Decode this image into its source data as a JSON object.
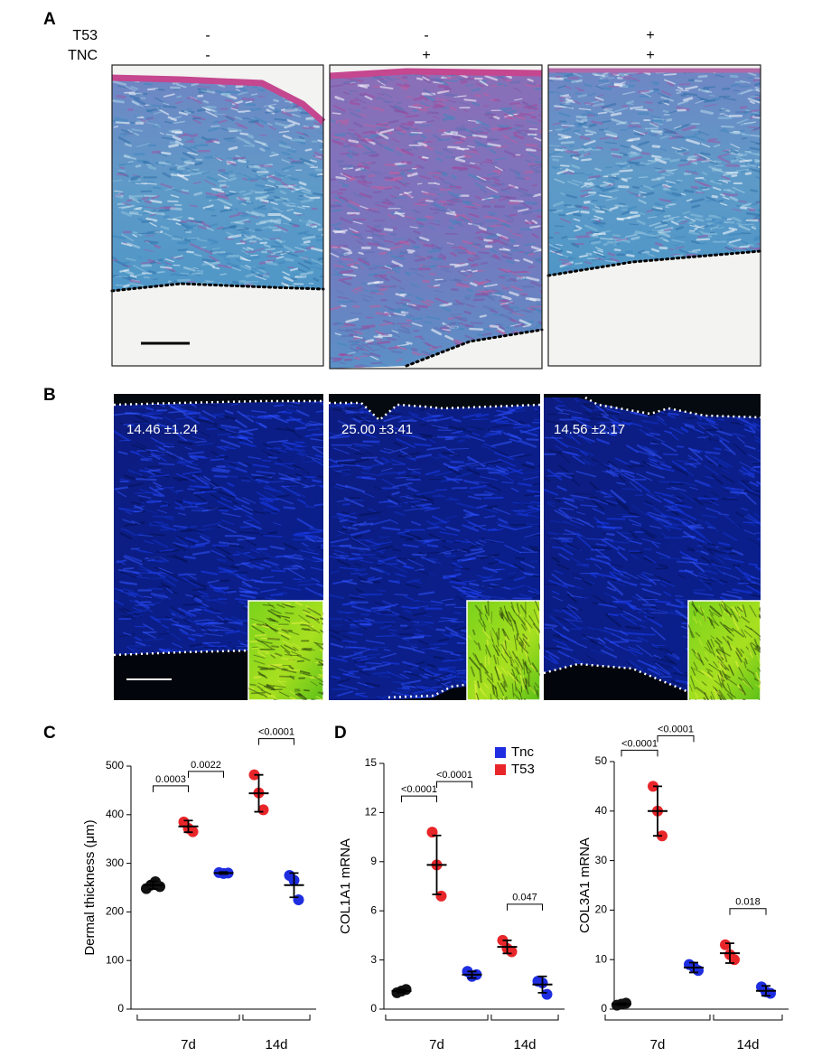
{
  "panel_a": {
    "label": "A",
    "row_labels": [
      "T53",
      "TNC"
    ],
    "conditions": [
      [
        "-",
        "-"
      ],
      [
        "-",
        "+"
      ],
      [
        "+",
        "+"
      ]
    ]
  },
  "panel_b": {
    "label": "B",
    "measurements": [
      "14.46 ±1.24",
      "25.00 ±3.41",
      "14.56 ±2.17"
    ]
  },
  "chart_data": [
    {
      "type": "dot",
      "panel": "C",
      "ylabel": "Dermal thickness (μm)",
      "ylim": [
        0,
        500
      ],
      "yticks": [
        0,
        100,
        200,
        300,
        400,
        500
      ],
      "categories": [
        "7d",
        "14d"
      ],
      "groups": [
        {
          "category": 0,
          "color": "#111111",
          "points": [
            248,
            255,
            262,
            252
          ],
          "mean": 255,
          "sd": 8
        },
        {
          "category": 0,
          "color": "#e8262a",
          "points": [
            385,
            372,
            365
          ],
          "mean": 376,
          "sd": 12
        },
        {
          "category": 0,
          "color": "#1f2de0",
          "points": [
            281,
            279,
            280
          ],
          "mean": 280,
          "sd": 2
        },
        {
          "category": 1,
          "color": "#e8262a",
          "points": [
            482,
            445,
            410
          ],
          "mean": 444,
          "sd": 38
        },
        {
          "category": 1,
          "color": "#1f2de0",
          "points": [
            275,
            265,
            225
          ],
          "mean": 255,
          "sd": 25
        }
      ],
      "comparisons": [
        {
          "groups": [
            0,
            1
          ],
          "label": "0.0003"
        },
        {
          "groups": [
            1,
            2
          ],
          "label": "0.0022"
        },
        {
          "groups": [
            3,
            4
          ],
          "label": "<0.0001"
        }
      ]
    },
    {
      "type": "dot",
      "panel": "D",
      "ylabel": "COL1A1 mRNA",
      "ylim": [
        0,
        15
      ],
      "yticks": [
        0,
        3,
        6,
        9,
        12,
        15
      ],
      "categories": [
        "7d",
        "14d"
      ],
      "legend": [
        {
          "name": "Tnc",
          "color": "#1f2de0"
        },
        {
          "name": "T53",
          "color": "#e8262a"
        }
      ],
      "groups": [
        {
          "category": 0,
          "color": "#111111",
          "points": [
            1.0,
            1.1,
            1.2
          ],
          "mean": 1.1,
          "sd": 0.1
        },
        {
          "category": 0,
          "color": "#e8262a",
          "points": [
            10.8,
            8.8,
            6.9
          ],
          "mean": 8.8,
          "sd": 1.8
        },
        {
          "category": 0,
          "color": "#1f2de0",
          "points": [
            2.3,
            2.0,
            2.1
          ],
          "mean": 2.1,
          "sd": 0.2
        },
        {
          "category": 1,
          "color": "#e8262a",
          "points": [
            4.2,
            3.7,
            3.5
          ],
          "mean": 3.8,
          "sd": 0.4
        },
        {
          "category": 1,
          "color": "#1f2de0",
          "points": [
            1.7,
            1.6,
            0.9
          ],
          "mean": 1.5,
          "sd": 0.5
        }
      ],
      "comparisons": [
        {
          "groups": [
            0,
            1
          ],
          "label": "<0.0001"
        },
        {
          "groups": [
            1,
            2
          ],
          "label": "<0.0001"
        },
        {
          "groups": [
            3,
            4
          ],
          "label": "0.047"
        }
      ]
    },
    {
      "type": "dot",
      "ylabel": "COL3A1 mRNA",
      "ylim": [
        0,
        50
      ],
      "yticks": [
        0,
        10,
        20,
        30,
        40,
        50
      ],
      "categories": [
        "7d",
        "14d"
      ],
      "groups": [
        {
          "category": 0,
          "color": "#111111",
          "points": [
            0.8,
            1.0,
            1.2
          ],
          "mean": 1.0,
          "sd": 0.2
        },
        {
          "category": 0,
          "color": "#e8262a",
          "points": [
            45,
            40,
            35
          ],
          "mean": 40,
          "sd": 5
        },
        {
          "category": 0,
          "color": "#1f2de0",
          "points": [
            9.0,
            8.5,
            7.8
          ],
          "mean": 8.4,
          "sd": 1.0
        },
        {
          "category": 1,
          "color": "#e8262a",
          "points": [
            13,
            11,
            10
          ],
          "mean": 11.3,
          "sd": 2
        },
        {
          "category": 1,
          "color": "#1f2de0",
          "points": [
            4.5,
            3.5,
            3.2
          ],
          "mean": 3.7,
          "sd": 1
        }
      ],
      "comparisons": [
        {
          "groups": [
            0,
            1
          ],
          "label": "<0.0001"
        },
        {
          "groups": [
            1,
            2
          ],
          "label": "<0.0001"
        },
        {
          "groups": [
            3,
            4
          ],
          "label": "0.018"
        }
      ]
    }
  ]
}
